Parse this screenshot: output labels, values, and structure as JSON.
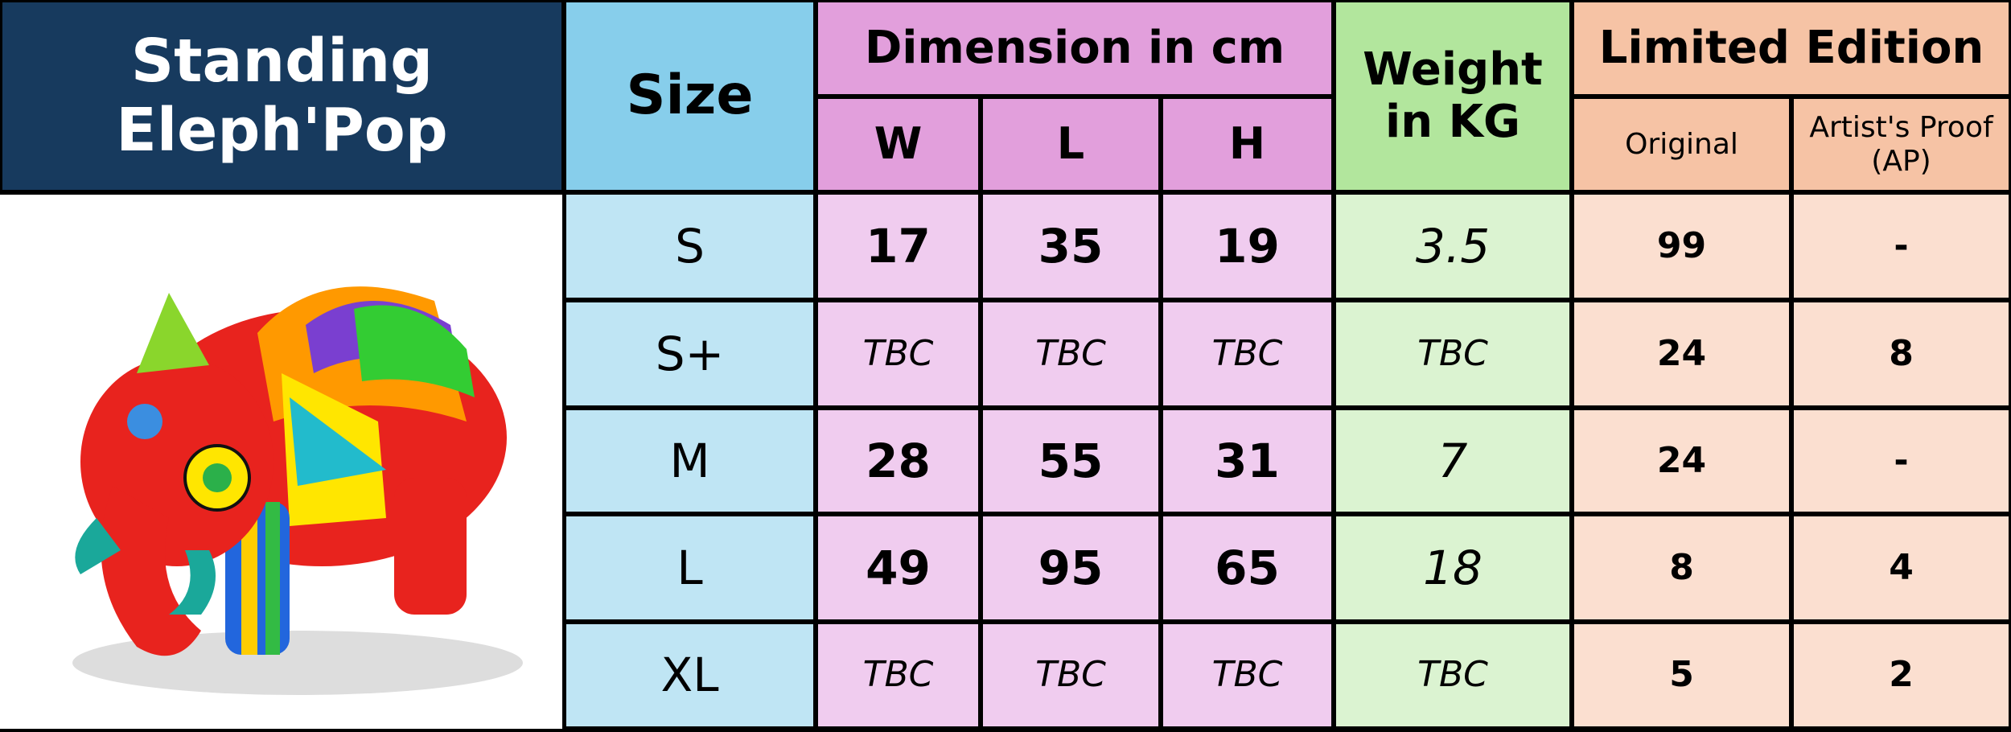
{
  "header": {
    "title": [
      "Standing",
      "Eleph'Pop"
    ],
    "size": "Size",
    "dimension": "Dimension in cm",
    "dimension_columns": [
      "W",
      "L",
      "H"
    ],
    "weight": [
      "Weight",
      "in KG"
    ],
    "edition": "Limited Edition",
    "edition_columns": [
      [
        "Original"
      ],
      [
        "Artist's Proof",
        "(AP)"
      ]
    ]
  },
  "rows": [
    [
      "S",
      17,
      35,
      19,
      3.5,
      99,
      "-"
    ],
    [
      "S+",
      "TBC",
      "TBC",
      "TBC",
      "TBC",
      24,
      8
    ],
    [
      "M",
      28,
      55,
      31,
      7,
      24,
      "-"
    ],
    [
      "L",
      49,
      95,
      65,
      18,
      8,
      4
    ],
    [
      "XL",
      "TBC",
      "TBC",
      "TBC",
      "TBC",
      5,
      2
    ]
  ]
}
